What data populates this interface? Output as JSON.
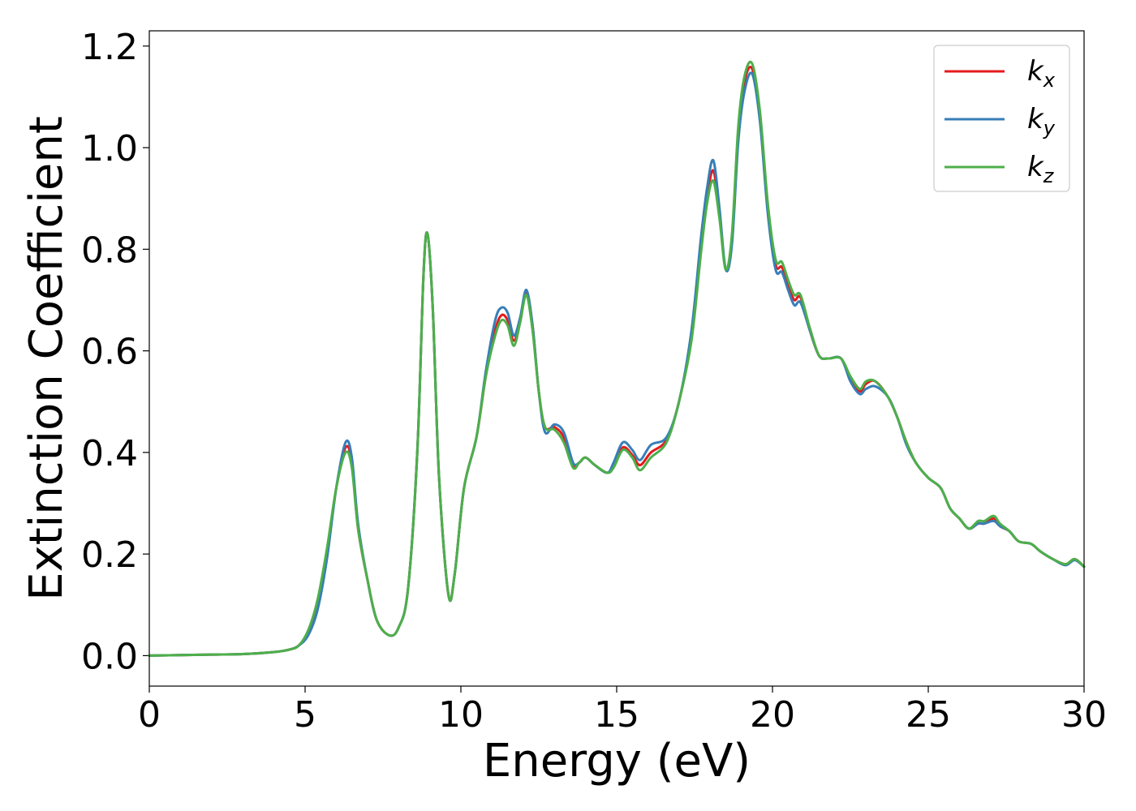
{
  "chart_data": {
    "type": "line",
    "xlabel": "Energy (eV)",
    "ylabel": "Extinction Coefficient",
    "xlim": [
      0,
      30
    ],
    "ylim": [
      -0.06,
      1.23
    ],
    "xticks": [
      0,
      5,
      10,
      15,
      20,
      25,
      30
    ],
    "yticks": [
      0.0,
      0.2,
      0.4,
      0.6,
      0.8,
      1.0,
      1.2
    ],
    "xtick_labels": [
      "0",
      "5",
      "10",
      "15",
      "20",
      "25",
      "30"
    ],
    "ytick_labels": [
      "0.0",
      "0.2",
      "0.4",
      "0.6",
      "0.8",
      "1.0",
      "1.2"
    ],
    "grid": false,
    "legend_position": "top-right",
    "series": [
      {
        "name": "k_x",
        "base": "k",
        "sub": "x",
        "color": "#e41a1c",
        "points": [
          [
            0,
            0
          ],
          [
            1,
            0.001
          ],
          [
            2,
            0.002
          ],
          [
            3,
            0.003
          ],
          [
            4,
            0.007
          ],
          [
            4.5,
            0.012
          ],
          [
            4.8,
            0.02
          ],
          [
            5.1,
            0.045
          ],
          [
            5.4,
            0.1
          ],
          [
            5.7,
            0.2
          ],
          [
            6.0,
            0.33
          ],
          [
            6.3,
            0.41
          ],
          [
            6.5,
            0.38
          ],
          [
            6.7,
            0.25
          ],
          [
            7.0,
            0.15
          ],
          [
            7.3,
            0.07
          ],
          [
            7.7,
            0.04
          ],
          [
            8.0,
            0.055
          ],
          [
            8.3,
            0.13
          ],
          [
            8.6,
            0.4
          ],
          [
            8.8,
            0.75
          ],
          [
            8.93,
            0.83
          ],
          [
            9.1,
            0.68
          ],
          [
            9.3,
            0.35
          ],
          [
            9.6,
            0.12
          ],
          [
            9.8,
            0.16
          ],
          [
            10.1,
            0.33
          ],
          [
            10.5,
            0.43
          ],
          [
            10.8,
            0.55
          ],
          [
            11.1,
            0.64
          ],
          [
            11.3,
            0.67
          ],
          [
            11.5,
            0.66
          ],
          [
            11.7,
            0.62
          ],
          [
            11.9,
            0.66
          ],
          [
            12.1,
            0.715
          ],
          [
            12.3,
            0.65
          ],
          [
            12.5,
            0.52
          ],
          [
            12.7,
            0.45
          ],
          [
            13.0,
            0.45
          ],
          [
            13.3,
            0.43
          ],
          [
            13.6,
            0.375
          ],
          [
            13.8,
            0.38
          ],
          [
            14.0,
            0.39
          ],
          [
            14.3,
            0.375
          ],
          [
            14.7,
            0.36
          ],
          [
            14.9,
            0.375
          ],
          [
            15.2,
            0.41
          ],
          [
            15.5,
            0.395
          ],
          [
            15.75,
            0.375
          ],
          [
            16.1,
            0.4
          ],
          [
            16.6,
            0.425
          ],
          [
            17.0,
            0.5
          ],
          [
            17.4,
            0.63
          ],
          [
            17.7,
            0.8
          ],
          [
            17.9,
            0.9
          ],
          [
            18.1,
            0.955
          ],
          [
            18.3,
            0.87
          ],
          [
            18.5,
            0.76
          ],
          [
            18.7,
            0.82
          ],
          [
            18.9,
            1.03
          ],
          [
            19.1,
            1.13
          ],
          [
            19.35,
            1.155
          ],
          [
            19.6,
            1.06
          ],
          [
            19.85,
            0.88
          ],
          [
            20.1,
            0.77
          ],
          [
            20.3,
            0.765
          ],
          [
            20.5,
            0.73
          ],
          [
            20.7,
            0.7
          ],
          [
            20.9,
            0.705
          ],
          [
            21.2,
            0.64
          ],
          [
            21.5,
            0.59
          ],
          [
            21.8,
            0.585
          ],
          [
            22.2,
            0.585
          ],
          [
            22.5,
            0.545
          ],
          [
            22.8,
            0.52
          ],
          [
            23.0,
            0.535
          ],
          [
            23.3,
            0.54
          ],
          [
            23.7,
            0.51
          ],
          [
            24.0,
            0.47
          ],
          [
            24.3,
            0.42
          ],
          [
            24.6,
            0.38
          ],
          [
            25.0,
            0.35
          ],
          [
            25.4,
            0.33
          ],
          [
            25.7,
            0.29
          ],
          [
            26.0,
            0.27
          ],
          [
            26.3,
            0.25
          ],
          [
            26.6,
            0.26
          ],
          [
            26.8,
            0.26
          ],
          [
            27.1,
            0.27
          ],
          [
            27.3,
            0.255
          ],
          [
            27.6,
            0.245
          ],
          [
            27.9,
            0.225
          ],
          [
            28.3,
            0.22
          ],
          [
            28.6,
            0.205
          ],
          [
            29.0,
            0.19
          ],
          [
            29.4,
            0.18
          ],
          [
            29.7,
            0.19
          ],
          [
            30.0,
            0.175
          ]
        ]
      },
      {
        "name": "k_y",
        "base": "k",
        "sub": "y",
        "color": "#377eb8",
        "points": [
          [
            0,
            0
          ],
          [
            1,
            0.001
          ],
          [
            2,
            0.002
          ],
          [
            3,
            0.003
          ],
          [
            4,
            0.007
          ],
          [
            4.5,
            0.012
          ],
          [
            4.8,
            0.02
          ],
          [
            5.1,
            0.04
          ],
          [
            5.4,
            0.09
          ],
          [
            5.7,
            0.19
          ],
          [
            6.0,
            0.33
          ],
          [
            6.3,
            0.42
          ],
          [
            6.5,
            0.39
          ],
          [
            6.7,
            0.26
          ],
          [
            7.0,
            0.15
          ],
          [
            7.3,
            0.07
          ],
          [
            7.7,
            0.04
          ],
          [
            8.0,
            0.055
          ],
          [
            8.3,
            0.13
          ],
          [
            8.6,
            0.4
          ],
          [
            8.8,
            0.75
          ],
          [
            8.93,
            0.83
          ],
          [
            9.1,
            0.68
          ],
          [
            9.3,
            0.35
          ],
          [
            9.6,
            0.12
          ],
          [
            9.8,
            0.16
          ],
          [
            10.1,
            0.33
          ],
          [
            10.5,
            0.43
          ],
          [
            10.8,
            0.56
          ],
          [
            11.1,
            0.66
          ],
          [
            11.3,
            0.685
          ],
          [
            11.5,
            0.675
          ],
          [
            11.7,
            0.63
          ],
          [
            11.9,
            0.665
          ],
          [
            12.1,
            0.72
          ],
          [
            12.3,
            0.65
          ],
          [
            12.5,
            0.52
          ],
          [
            12.7,
            0.44
          ],
          [
            13.0,
            0.455
          ],
          [
            13.3,
            0.44
          ],
          [
            13.6,
            0.38
          ],
          [
            13.8,
            0.38
          ],
          [
            14.0,
            0.39
          ],
          [
            14.3,
            0.375
          ],
          [
            14.7,
            0.36
          ],
          [
            14.9,
            0.38
          ],
          [
            15.2,
            0.42
          ],
          [
            15.5,
            0.405
          ],
          [
            15.75,
            0.385
          ],
          [
            16.1,
            0.415
          ],
          [
            16.6,
            0.43
          ],
          [
            17.0,
            0.5
          ],
          [
            17.4,
            0.64
          ],
          [
            17.7,
            0.82
          ],
          [
            17.9,
            0.92
          ],
          [
            18.1,
            0.975
          ],
          [
            18.3,
            0.88
          ],
          [
            18.5,
            0.76
          ],
          [
            18.7,
            0.81
          ],
          [
            18.9,
            1.01
          ],
          [
            19.1,
            1.11
          ],
          [
            19.35,
            1.145
          ],
          [
            19.6,
            1.05
          ],
          [
            19.85,
            0.87
          ],
          [
            20.1,
            0.76
          ],
          [
            20.3,
            0.755
          ],
          [
            20.5,
            0.72
          ],
          [
            20.7,
            0.69
          ],
          [
            20.9,
            0.695
          ],
          [
            21.2,
            0.64
          ],
          [
            21.5,
            0.59
          ],
          [
            21.8,
            0.585
          ],
          [
            22.2,
            0.585
          ],
          [
            22.5,
            0.54
          ],
          [
            22.8,
            0.515
          ],
          [
            23.0,
            0.525
          ],
          [
            23.3,
            0.53
          ],
          [
            23.7,
            0.51
          ],
          [
            24.0,
            0.47
          ],
          [
            24.3,
            0.415
          ],
          [
            24.6,
            0.38
          ],
          [
            25.0,
            0.35
          ],
          [
            25.4,
            0.33
          ],
          [
            25.7,
            0.29
          ],
          [
            26.0,
            0.27
          ],
          [
            26.3,
            0.25
          ],
          [
            26.6,
            0.26
          ],
          [
            26.8,
            0.26
          ],
          [
            27.1,
            0.265
          ],
          [
            27.3,
            0.255
          ],
          [
            27.6,
            0.245
          ],
          [
            27.9,
            0.225
          ],
          [
            28.3,
            0.22
          ],
          [
            28.6,
            0.205
          ],
          [
            29.0,
            0.19
          ],
          [
            29.4,
            0.178
          ],
          [
            29.7,
            0.188
          ],
          [
            30.0,
            0.175
          ]
        ]
      },
      {
        "name": "k_z",
        "base": "k",
        "sub": "z",
        "color": "#4daf4a",
        "points": [
          [
            0,
            0
          ],
          [
            1,
            0.001
          ],
          [
            2,
            0.002
          ],
          [
            3,
            0.003
          ],
          [
            4,
            0.007
          ],
          [
            4.5,
            0.012
          ],
          [
            4.8,
            0.02
          ],
          [
            5.1,
            0.05
          ],
          [
            5.4,
            0.11
          ],
          [
            5.7,
            0.21
          ],
          [
            6.0,
            0.33
          ],
          [
            6.3,
            0.4
          ],
          [
            6.5,
            0.37
          ],
          [
            6.7,
            0.25
          ],
          [
            7.0,
            0.15
          ],
          [
            7.3,
            0.07
          ],
          [
            7.7,
            0.04
          ],
          [
            8.0,
            0.055
          ],
          [
            8.3,
            0.13
          ],
          [
            8.6,
            0.4
          ],
          [
            8.8,
            0.75
          ],
          [
            8.93,
            0.83
          ],
          [
            9.1,
            0.68
          ],
          [
            9.3,
            0.35
          ],
          [
            9.6,
            0.12
          ],
          [
            9.8,
            0.16
          ],
          [
            10.1,
            0.33
          ],
          [
            10.5,
            0.43
          ],
          [
            10.8,
            0.55
          ],
          [
            11.1,
            0.63
          ],
          [
            11.3,
            0.66
          ],
          [
            11.5,
            0.65
          ],
          [
            11.7,
            0.61
          ],
          [
            11.9,
            0.655
          ],
          [
            12.1,
            0.71
          ],
          [
            12.3,
            0.64
          ],
          [
            12.5,
            0.52
          ],
          [
            12.7,
            0.45
          ],
          [
            13.0,
            0.445
          ],
          [
            13.3,
            0.42
          ],
          [
            13.6,
            0.37
          ],
          [
            13.8,
            0.38
          ],
          [
            14.0,
            0.39
          ],
          [
            14.3,
            0.375
          ],
          [
            14.7,
            0.36
          ],
          [
            14.9,
            0.37
          ],
          [
            15.2,
            0.405
          ],
          [
            15.5,
            0.39
          ],
          [
            15.75,
            0.365
          ],
          [
            16.1,
            0.39
          ],
          [
            16.6,
            0.42
          ],
          [
            17.0,
            0.5
          ],
          [
            17.4,
            0.62
          ],
          [
            17.7,
            0.79
          ],
          [
            17.9,
            0.89
          ],
          [
            18.1,
            0.935
          ],
          [
            18.3,
            0.86
          ],
          [
            18.5,
            0.76
          ],
          [
            18.7,
            0.83
          ],
          [
            18.9,
            1.04
          ],
          [
            19.1,
            1.14
          ],
          [
            19.35,
            1.165
          ],
          [
            19.6,
            1.07
          ],
          [
            19.85,
            0.89
          ],
          [
            20.1,
            0.78
          ],
          [
            20.3,
            0.775
          ],
          [
            20.5,
            0.74
          ],
          [
            20.7,
            0.71
          ],
          [
            20.9,
            0.71
          ],
          [
            21.2,
            0.645
          ],
          [
            21.5,
            0.59
          ],
          [
            21.8,
            0.585
          ],
          [
            22.2,
            0.585
          ],
          [
            22.5,
            0.55
          ],
          [
            22.8,
            0.525
          ],
          [
            23.0,
            0.54
          ],
          [
            23.3,
            0.54
          ],
          [
            23.7,
            0.51
          ],
          [
            24.0,
            0.47
          ],
          [
            24.3,
            0.42
          ],
          [
            24.6,
            0.38
          ],
          [
            25.0,
            0.35
          ],
          [
            25.4,
            0.33
          ],
          [
            25.7,
            0.29
          ],
          [
            26.0,
            0.27
          ],
          [
            26.3,
            0.25
          ],
          [
            26.6,
            0.265
          ],
          [
            26.8,
            0.265
          ],
          [
            27.1,
            0.275
          ],
          [
            27.3,
            0.26
          ],
          [
            27.6,
            0.245
          ],
          [
            27.9,
            0.225
          ],
          [
            28.3,
            0.22
          ],
          [
            28.6,
            0.205
          ],
          [
            29.0,
            0.19
          ],
          [
            29.4,
            0.18
          ],
          [
            29.7,
            0.19
          ],
          [
            30.0,
            0.175
          ]
        ]
      }
    ]
  }
}
